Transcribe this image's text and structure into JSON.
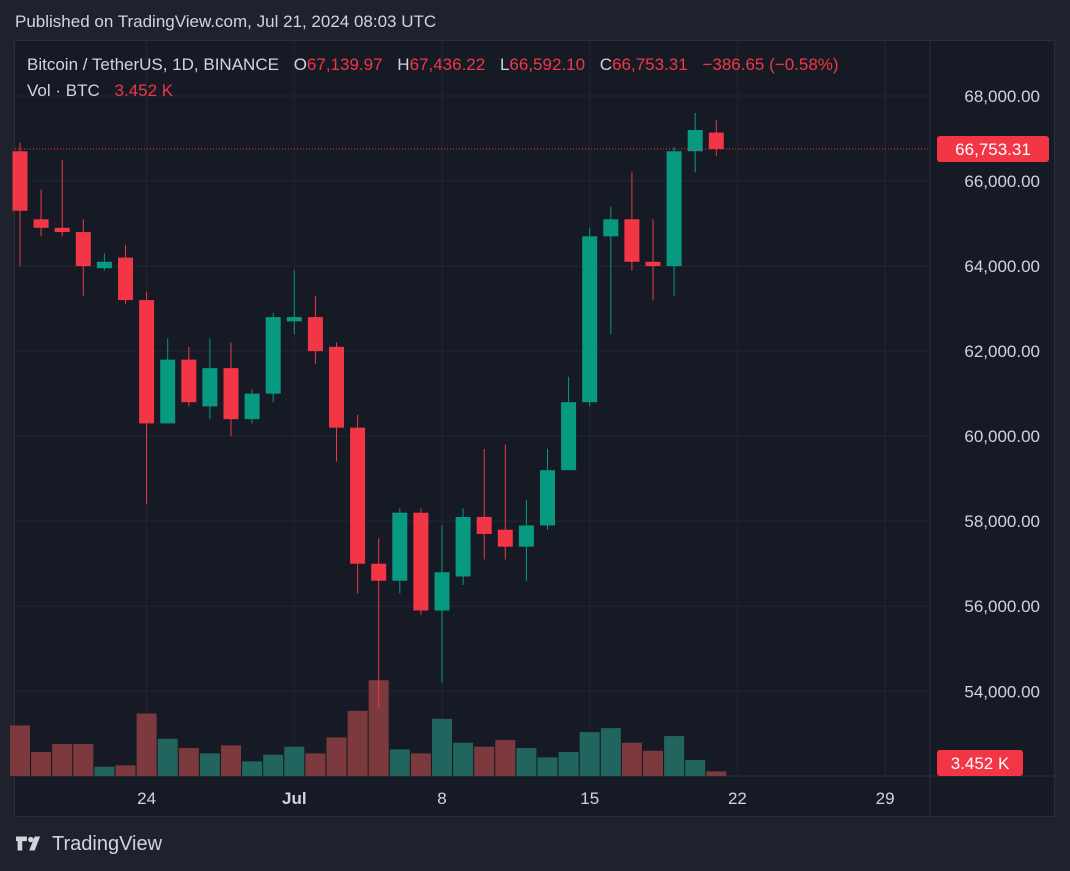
{
  "header": {
    "published_text": "Published on TradingView.com, Jul 21, 2024 08:03 UTC"
  },
  "legend": {
    "symbol_text": "Bitcoin / TetherUS, 1D, BINANCE",
    "open_label": "O",
    "open_value": "67,139.97",
    "high_label": "H",
    "high_value": "67,436.22",
    "low_label": "L",
    "low_value": "66,592.10",
    "close_label": "C",
    "close_value": "66,753.31",
    "change_text": "−386.65 (−0.58%)",
    "volume_label": "Vol · BTC",
    "volume_value": "3.452 K"
  },
  "footer": {
    "brand": "TradingView"
  },
  "colors": {
    "up": "#089981",
    "down": "#f23645",
    "vol_up": "#22655e",
    "vol_down": "#7d3a3e",
    "background": "#161a25",
    "grid": "#232632",
    "axis_text": "#d1d4dc"
  },
  "chart_data": {
    "type": "candlestick",
    "symbol": "BTC/USDT",
    "interval": "1D",
    "exchange": "BINANCE",
    "ylim": [
      52000,
      68700
    ],
    "y_ticks": [
      "54,000.00",
      "56,000.00",
      "58,000.00",
      "60,000.00",
      "62,000.00",
      "64,000.00",
      "66,000.00",
      "68,000.00"
    ],
    "x_ticks": [
      {
        "label": "24",
        "index": 6
      },
      {
        "label": "Jul",
        "index": 13
      },
      {
        "label": "8",
        "index": 20
      },
      {
        "label": "15",
        "index": 27
      },
      {
        "label": "22",
        "index": 34
      },
      {
        "label": "29",
        "index": 41
      }
    ],
    "last_price_label": "66,753.31",
    "last_price": 66753.31,
    "last_volume_label": "3.452 K",
    "ohlc": [
      {
        "o": 66700,
        "h": 66900,
        "l": 64000,
        "c": 65300,
        "v": 38
      },
      {
        "o": 65100,
        "h": 65800,
        "l": 64700,
        "c": 64900,
        "v": 18
      },
      {
        "o": 64900,
        "h": 66500,
        "l": 64700,
        "c": 64800,
        "v": 24
      },
      {
        "o": 64800,
        "h": 65100,
        "l": 63300,
        "c": 64000,
        "v": 24
      },
      {
        "o": 63950,
        "h": 64300,
        "l": 63900,
        "c": 64100,
        "v": 7
      },
      {
        "o": 64200,
        "h": 64500,
        "l": 63100,
        "c": 63200,
        "v": 8
      },
      {
        "o": 63200,
        "h": 63400,
        "l": 58400,
        "c": 60300,
        "v": 47
      },
      {
        "o": 60300,
        "h": 62300,
        "l": 60300,
        "c": 61800,
        "v": 28
      },
      {
        "o": 61800,
        "h": 62100,
        "l": 60700,
        "c": 60800,
        "v": 21
      },
      {
        "o": 60700,
        "h": 62300,
        "l": 60400,
        "c": 61600,
        "v": 17
      },
      {
        "o": 61600,
        "h": 62200,
        "l": 60000,
        "c": 60400,
        "v": 23
      },
      {
        "o": 60400,
        "h": 61100,
        "l": 60300,
        "c": 61000,
        "v": 11
      },
      {
        "o": 61000,
        "h": 62900,
        "l": 60800,
        "c": 62800,
        "v": 16
      },
      {
        "o": 62700,
        "h": 63900,
        "l": 62400,
        "c": 62800,
        "v": 22
      },
      {
        "o": 62800,
        "h": 63300,
        "l": 61700,
        "c": 62000,
        "v": 17
      },
      {
        "o": 62100,
        "h": 62200,
        "l": 59400,
        "c": 60200,
        "v": 29
      },
      {
        "o": 60200,
        "h": 60500,
        "l": 56300,
        "c": 57000,
        "v": 49
      },
      {
        "o": 57000,
        "h": 57600,
        "l": 53600,
        "c": 56600,
        "v": 72
      },
      {
        "o": 56600,
        "h": 58300,
        "l": 56300,
        "c": 58200,
        "v": 20
      },
      {
        "o": 58200,
        "h": 58300,
        "l": 55800,
        "c": 55900,
        "v": 17
      },
      {
        "o": 55900,
        "h": 57900,
        "l": 54200,
        "c": 56800,
        "v": 43
      },
      {
        "o": 56700,
        "h": 58300,
        "l": 56500,
        "c": 58100,
        "v": 25
      },
      {
        "o": 58100,
        "h": 59700,
        "l": 57100,
        "c": 57700,
        "v": 22
      },
      {
        "o": 57800,
        "h": 59800,
        "l": 57100,
        "c": 57400,
        "v": 27
      },
      {
        "o": 57400,
        "h": 58500,
        "l": 56600,
        "c": 57900,
        "v": 21
      },
      {
        "o": 57900,
        "h": 59700,
        "l": 57800,
        "c": 59200,
        "v": 14
      },
      {
        "o": 59200,
        "h": 61400,
        "l": 59200,
        "c": 60800,
        "v": 18
      },
      {
        "o": 60800,
        "h": 64900,
        "l": 60700,
        "c": 64700,
        "v": 33
      },
      {
        "o": 64700,
        "h": 65400,
        "l": 62400,
        "c": 65100,
        "v": 36
      },
      {
        "o": 65100,
        "h": 66200,
        "l": 63900,
        "c": 64100,
        "v": 25
      },
      {
        "o": 64100,
        "h": 65100,
        "l": 63200,
        "c": 64000,
        "v": 19
      },
      {
        "o": 64000,
        "h": 66800,
        "l": 63300,
        "c": 66700,
        "v": 30
      },
      {
        "o": 66700,
        "h": 67600,
        "l": 66200,
        "c": 67200,
        "v": 12
      },
      {
        "o": 67139.97,
        "h": 67436.22,
        "l": 66592.1,
        "c": 66753.31,
        "v": 3.452
      }
    ]
  }
}
